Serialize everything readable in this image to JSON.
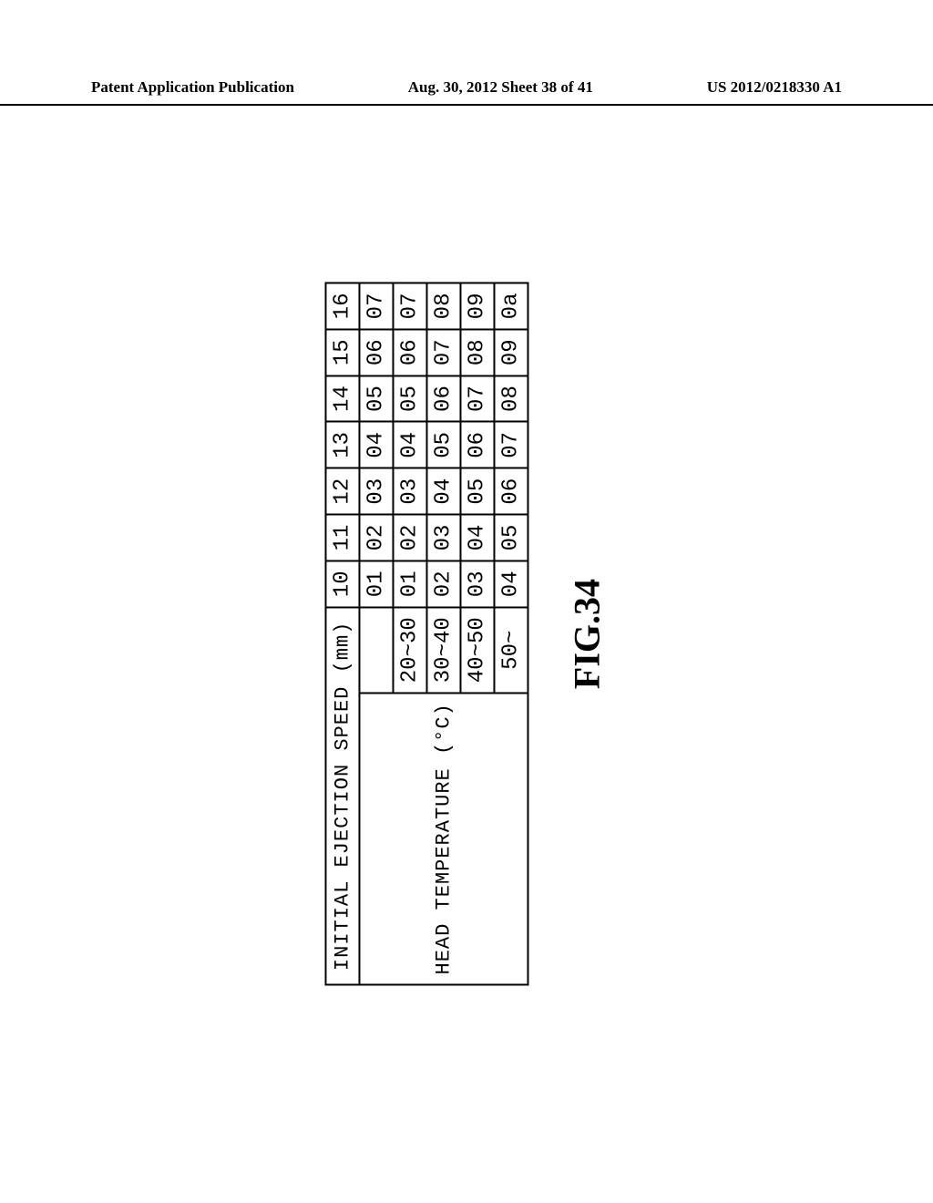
{
  "header": {
    "left": "Patent Application Publication",
    "center": "Aug. 30, 2012  Sheet 38 of 41",
    "right": "US 2012/0218330 A1"
  },
  "figure_label": "FIG.34",
  "table": {
    "type": "table",
    "top_label": "INITIAL EJECTION SPEED (mm)",
    "left_label": "HEAD TEMPERATURE (°C)",
    "speed_columns": [
      "10",
      "11",
      "12",
      "13",
      "14",
      "15",
      "16"
    ],
    "temp_rows": [
      "20~30",
      "30~40",
      "40~50",
      "50~"
    ],
    "cells": [
      [
        "01",
        "02",
        "03",
        "04",
        "05",
        "06",
        "07"
      ],
      [
        "01",
        "02",
        "03",
        "04",
        "05",
        "06",
        "07"
      ],
      [
        "02",
        "03",
        "04",
        "05",
        "06",
        "07",
        "08"
      ],
      [
        "03",
        "04",
        "05",
        "06",
        "07",
        "08",
        "09"
      ],
      [
        "04",
        "05",
        "06",
        "07",
        "08",
        "09",
        "0a"
      ]
    ],
    "border_color": "#000000",
    "background_color": "#ffffff",
    "font_family": "Courier New",
    "cell_fontsize": 24
  }
}
